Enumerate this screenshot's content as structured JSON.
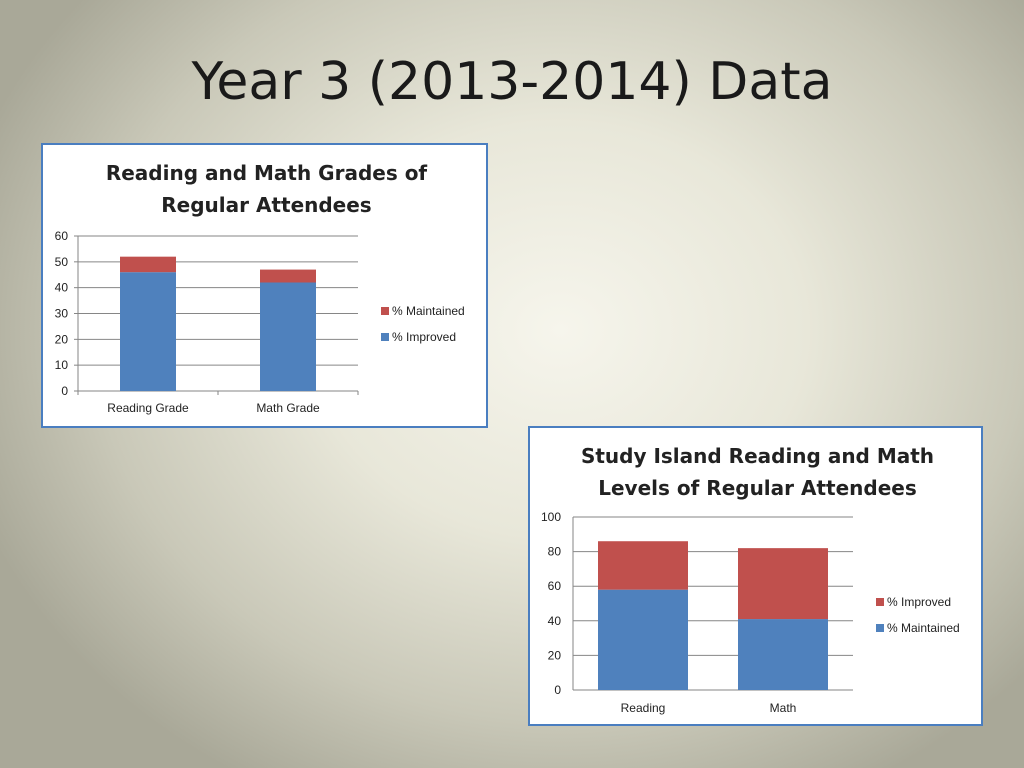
{
  "slide": {
    "title": "Year 3 (2013-2014) Data"
  },
  "chart_data": [
    {
      "type": "bar",
      "stacked": true,
      "title_lines": [
        "Reading and Math Grades of",
        "Regular Attendees"
      ],
      "categories": [
        "Reading Grade",
        "Math Grade"
      ],
      "series": [
        {
          "name": "% Improved",
          "values": [
            46,
            42
          ],
          "color": "#4f81bd"
        },
        {
          "name": "% Maintained",
          "values": [
            6,
            5
          ],
          "color": "#c0504d"
        }
      ],
      "legend_order": [
        "% Maintained",
        "% Improved"
      ],
      "ylim": [
        0,
        60
      ],
      "yticks": [
        0,
        10,
        20,
        30,
        40,
        50,
        60
      ],
      "grid": true,
      "legend": "right"
    },
    {
      "type": "bar",
      "stacked": true,
      "title_lines": [
        "Study Island Reading and Math",
        "Levels of Regular Attendees"
      ],
      "categories": [
        "Reading",
        "Math"
      ],
      "series": [
        {
          "name": "% Maintained",
          "values": [
            58,
            41
          ],
          "color": "#4f81bd"
        },
        {
          "name": "% Improved",
          "values": [
            28,
            41
          ],
          "color": "#c0504d"
        }
      ],
      "legend_order": [
        "% Improved",
        "% Maintained"
      ],
      "ylim": [
        0,
        100
      ],
      "yticks": [
        0,
        20,
        40,
        60,
        80,
        100
      ],
      "grid": true,
      "legend": "right"
    }
  ]
}
